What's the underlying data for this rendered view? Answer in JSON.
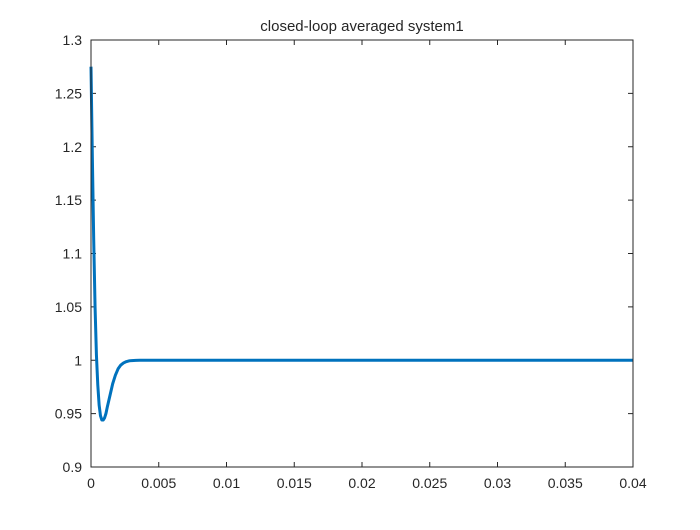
{
  "chart_data": {
    "type": "line",
    "title": "closed-loop averaged system1",
    "xlabel": "",
    "ylabel": "",
    "xlim": [
      0,
      0.04
    ],
    "ylim": [
      0.9,
      1.3
    ],
    "x_ticks": [
      "0",
      "0.005",
      "0.01",
      "0.015",
      "0.02",
      "0.025",
      "0.03",
      "0.035",
      "0.04"
    ],
    "y_ticks": [
      "0.9",
      "0.95",
      "1",
      "1.05",
      "1.1",
      "1.15",
      "1.2",
      "1.25",
      "1.3"
    ],
    "grid": false,
    "legend": "none",
    "series": [
      {
        "color": "#0072BD",
        "x": [
          0,
          0.0001,
          0.0002,
          0.0003,
          0.0004,
          0.0005,
          0.0006,
          0.0007,
          0.0008,
          0.0009,
          0.001,
          0.0011,
          0.0012,
          0.0014,
          0.0016,
          0.0018,
          0.002,
          0.0022,
          0.0024,
          0.0026,
          0.0028,
          0.003,
          0.0033,
          0.0036,
          0.004,
          0.005,
          0.01,
          0.02,
          0.03,
          0.04
        ],
        "y": [
          1.275,
          1.19,
          1.113,
          1.05,
          1.005,
          0.977,
          0.958,
          0.948,
          0.944,
          0.944,
          0.946,
          0.95,
          0.956,
          0.967,
          0.978,
          0.986,
          0.992,
          0.9955,
          0.9975,
          0.9987,
          0.9994,
          0.9997,
          0.9999,
          1.0,
          1.0,
          1.0,
          1.0,
          1.0,
          1.0,
          1.0
        ]
      }
    ]
  }
}
